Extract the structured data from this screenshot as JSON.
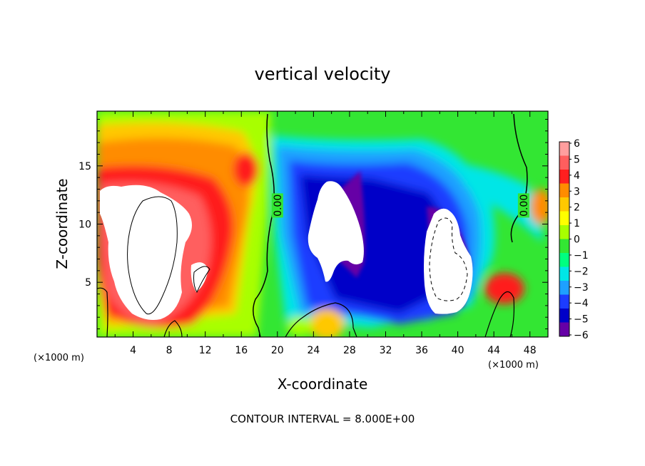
{
  "chart_data": {
    "type": "heatmap",
    "title": "vertical velocity",
    "xlabel": "X-coordinate",
    "ylabel": "Z-coordinate",
    "x_unit_label": "(×1000 m)",
    "y_unit_label": "(×1000 m)",
    "xlim": [
      0,
      50
    ],
    "ylim": [
      0.3,
      19.7
    ],
    "x_ticks": [
      4,
      8,
      12,
      16,
      20,
      24,
      28,
      32,
      36,
      40,
      44,
      48
    ],
    "y_ticks": [
      5,
      10,
      15
    ],
    "footnote": "CONTOUR INTERVAL = 8.000E+00",
    "contour_labels": [
      {
        "text": "0.00",
        "x": 20.0,
        "y": 11.6
      },
      {
        "text": "0.00",
        "x": 47.3,
        "y": 11.6
      }
    ],
    "colorbar": {
      "levels": [
        "6",
        "5",
        "4",
        "3",
        "2",
        "1",
        "0",
        "−1",
        "−2",
        "−3",
        "−4",
        "−5",
        "−6"
      ],
      "colors": [
        "#ff9e9e",
        "#ff5e5e",
        "#ff1f1f",
        "#ff8c00",
        "#ffc800",
        "#ffff00",
        "#a8ff00",
        "#33e633",
        "#00ff80",
        "#00e6e6",
        "#1ea0ff",
        "#1c3cff",
        "#0000c8",
        "#6600a6"
      ]
    },
    "features": [
      {
        "region": "left updraft core (off-scale positive)",
        "x": [
          1,
          13
        ],
        "z": [
          1,
          14
        ],
        "value": "> 6"
      },
      {
        "region": "downdraft core near x=26",
        "x": [
          23,
          29
        ],
        "z": [
          5,
          14
        ],
        "value": "< -6"
      },
      {
        "region": "downdraft core near x=38",
        "x": [
          36,
          42
        ],
        "z": [
          2,
          11
        ],
        "value": "< -6"
      },
      {
        "region": "small updraft near x=45",
        "x": [
          43,
          47
        ],
        "z": [
          2,
          5
        ],
        "value": "4 to 6"
      }
    ]
  }
}
